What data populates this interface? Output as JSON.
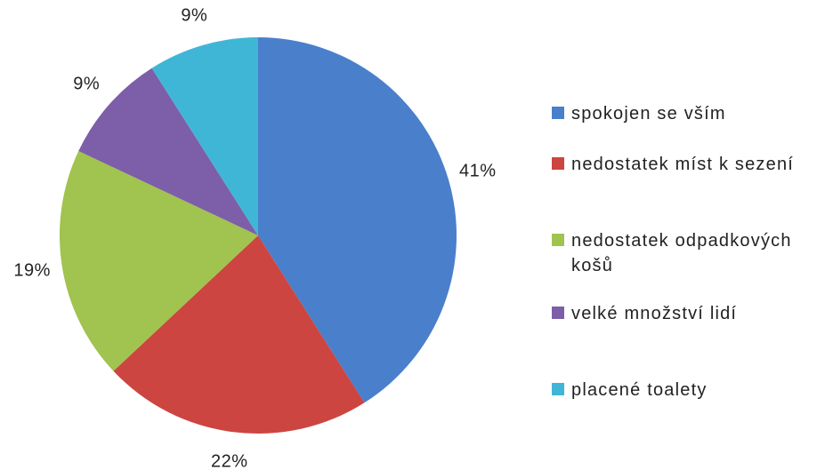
{
  "chart_data": {
    "type": "pie",
    "categories": [
      "spokojen se vším",
      "nedostatek míst k sezení",
      "nedostatek odpadkových košů",
      "velké množství lidí",
      "placené toalety"
    ],
    "values": [
      41,
      22,
      19,
      9,
      9
    ],
    "value_labels": [
      "41%",
      "22%",
      "19%",
      "9%",
      "9%"
    ],
    "colors": [
      "#4a7fcb",
      "#cc4540",
      "#a1c34f",
      "#7d5ea8",
      "#40b6d6"
    ],
    "legend": "right"
  }
}
